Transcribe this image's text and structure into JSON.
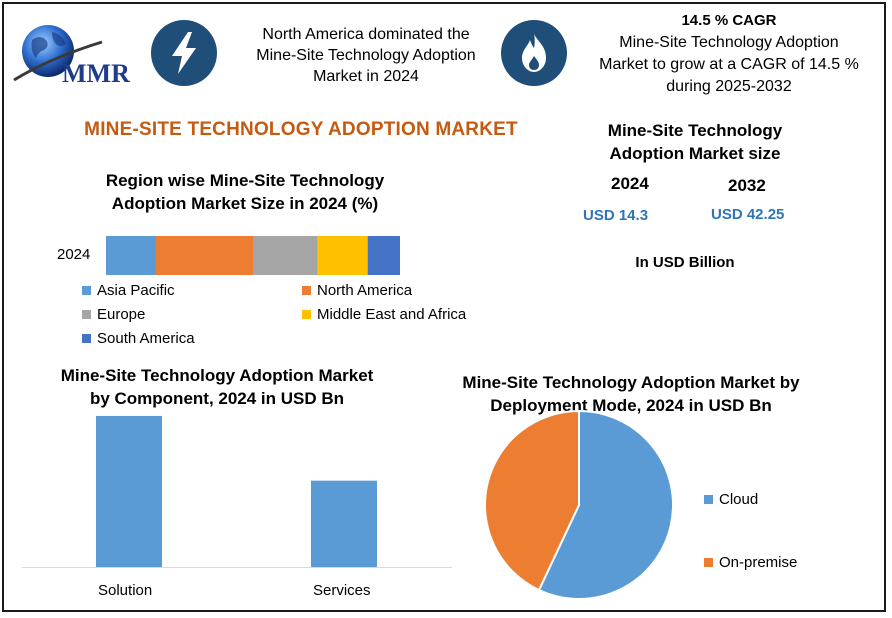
{
  "header": {
    "logo_text": "MMR",
    "info_left": [
      "North America dominated the",
      "Mine-Site Technology Adoption",
      "Market in 2024"
    ],
    "info_right_cagr": "14.5 % CAGR",
    "info_right": [
      "Mine-Site Technology Adoption",
      "Market to grow at a CAGR of 14.5 %",
      "during 2025-2032"
    ]
  },
  "main_title": "MINE-SITE TECHNOLOGY ADOPTION MARKET",
  "market_size": {
    "title": [
      "Mine-Site Technology",
      "Adoption Market size"
    ],
    "year_a": "2024",
    "year_b": "2032",
    "value_a": "USD 14.3",
    "value_b": "USD 42.25",
    "unit": "In USD Billion"
  },
  "colors": {
    "blue": "#5b9bd5",
    "orange": "#ed7d31",
    "gray": "#a5a5a5",
    "yellow": "#ffc000",
    "darkblue": "#4472c4",
    "icon_bg": "#1f4e79",
    "title_orange": "#c55a11",
    "usd_blue": "#2e75b6"
  },
  "chart_data": [
    {
      "type": "bar",
      "orientation": "horizontal-stacked",
      "title": "Region wise Mine-Site Technology Adoption Market Size in 2024 (%)",
      "title_lines": [
        "Region wise Mine-Site Technology",
        "Adoption Market Size in 2024 (%)"
      ],
      "categories": [
        "2024"
      ],
      "series": [
        {
          "name": "Asia Pacific",
          "values": [
            17
          ],
          "color": "#5b9bd5"
        },
        {
          "name": "North America",
          "values": [
            33
          ],
          "color": "#ed7d31"
        },
        {
          "name": "Europe",
          "values": [
            22
          ],
          "color": "#a5a5a5"
        },
        {
          "name": "Middle East and Africa",
          "values": [
            17
          ],
          "color": "#ffc000"
        },
        {
          "name": "South America",
          "values": [
            11
          ],
          "color": "#4472c4"
        }
      ],
      "legend_position": "bottom"
    },
    {
      "type": "bar",
      "title": "Mine-Site Technology Adoption Market by Component, 2024 in USD Bn",
      "title_lines": [
        "Mine-Site Technology Adoption Market",
        "by Component, 2024 in USD Bn"
      ],
      "categories": [
        "Solution",
        "Services"
      ],
      "values": [
        9.1,
        5.2
      ],
      "ylim": [
        0,
        10
      ],
      "color": "#5b9bd5"
    },
    {
      "type": "pie",
      "title": "Mine-Site Technology Adoption Market by Deployment Mode, 2024 in USD Bn",
      "title_lines": [
        "Mine-Site Technology Adoption Market by",
        "Deployment Mode, 2024 in USD Bn"
      ],
      "labels": [
        "Cloud",
        "On-premise"
      ],
      "values": [
        57,
        43
      ],
      "colors": [
        "#5b9bd5",
        "#ed7d31"
      ],
      "legend_position": "right"
    }
  ]
}
